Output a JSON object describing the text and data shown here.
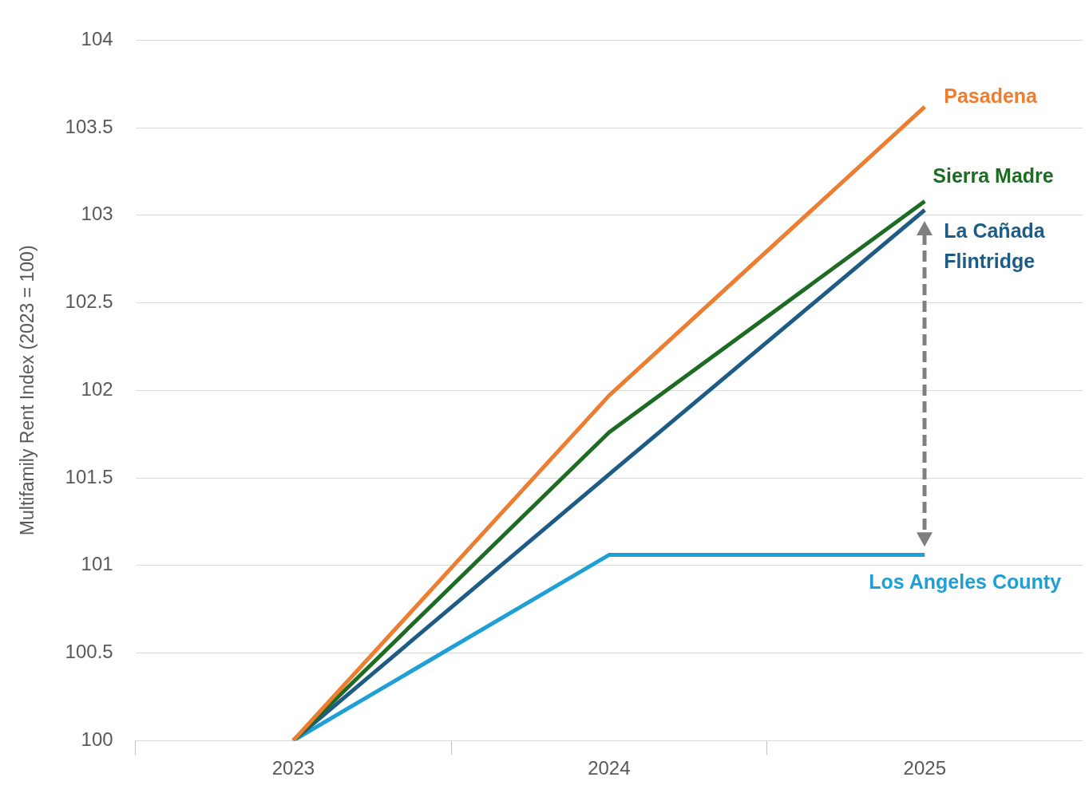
{
  "chart_data": {
    "type": "line",
    "ylabel": "Multifamily Rent Index (2023 = 100)",
    "categories": [
      "2023",
      "2024",
      "2025"
    ],
    "series": [
      {
        "name": "Pasadena",
        "color": "#ed7d31",
        "values": [
          100,
          101.97,
          103.62
        ]
      },
      {
        "name": "Sierra Madre",
        "color": "#1e6b23",
        "values": [
          100,
          101.76,
          103.08
        ]
      },
      {
        "name": "La Cañada Flintridge",
        "color": "#1f5c85",
        "values": [
          100,
          101.52,
          103.03
        ]
      },
      {
        "name": "Los Angeles County",
        "color": "#1ea0d6",
        "values": [
          100,
          101.06,
          101.06
        ]
      }
    ],
    "ylim": [
      100,
      104
    ],
    "yticks": [
      100,
      100.5,
      101,
      101.5,
      102,
      102.5,
      103,
      103.5,
      104
    ],
    "grid": "y",
    "legend": false,
    "marker": "none",
    "line_style": "solid"
  }
}
